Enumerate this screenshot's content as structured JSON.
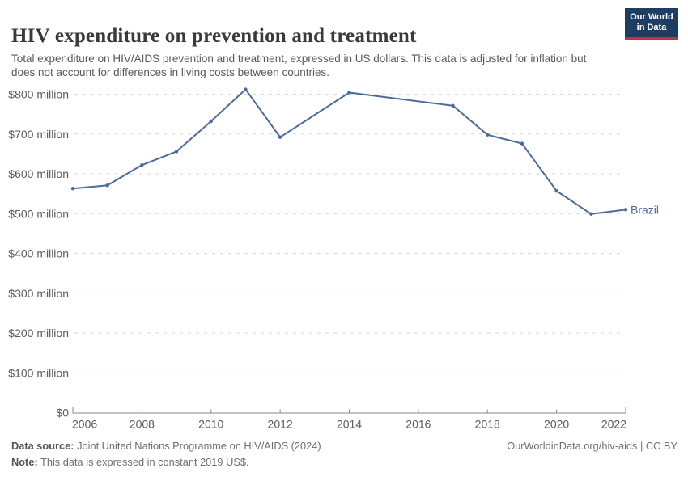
{
  "header": {
    "title": "HIV expenditure on prevention and treatment",
    "subtitle": "Total expenditure on HIV/AIDS prevention and treatment, expressed in US dollars. This data is adjusted for inflation but does not account for differences in living costs between countries.",
    "logo": {
      "line1": "Our World",
      "line2": "in Data"
    }
  },
  "chart_data": {
    "type": "line",
    "title": "HIV expenditure on prevention and treatment",
    "entity_label": "Brazil",
    "values_unit": "US$, millions (constant 2019 US$)",
    "series": [
      {
        "name": "Brazil",
        "points": [
          {
            "year": 2006,
            "value": 563
          },
          {
            "year": 2007,
            "value": 571
          },
          {
            "year": 2008,
            "value": 622
          },
          {
            "year": 2009,
            "value": 656
          },
          {
            "year": 2010,
            "value": 732
          },
          {
            "year": 2011,
            "value": 812
          },
          {
            "year": 2012,
            "value": 692
          },
          {
            "year": 2014,
            "value": 804
          },
          {
            "year": 2017,
            "value": 771
          },
          {
            "year": 2018,
            "value": 698
          },
          {
            "year": 2019,
            "value": 676
          },
          {
            "year": 2020,
            "value": 557
          },
          {
            "year": 2021,
            "value": 499
          },
          {
            "year": 2022,
            "value": 510
          }
        ]
      }
    ],
    "missing_years_interpolated": [
      2013,
      2015,
      2016
    ],
    "xlim": [
      2006,
      2022
    ],
    "ylim": [
      0,
      800
    ],
    "x_ticks": [
      2006,
      2008,
      2010,
      2012,
      2014,
      2016,
      2018,
      2020,
      2022
    ],
    "y_ticks": [
      {
        "value": 0,
        "label": "$0"
      },
      {
        "value": 100,
        "label": "$100 million"
      },
      {
        "value": 200,
        "label": "$200 million"
      },
      {
        "value": 300,
        "label": "$300 million"
      },
      {
        "value": 400,
        "label": "$400 million"
      },
      {
        "value": 500,
        "label": "$500 million"
      },
      {
        "value": 600,
        "label": "$600 million"
      },
      {
        "value": 700,
        "label": "$700 million"
      },
      {
        "value": 800,
        "label": "$800 million"
      }
    ],
    "grid": "horizontal dashed",
    "legend_position": "end-of-line label"
  },
  "footer": {
    "data_source_label": "Data source:",
    "data_source": "Joint United Nations Programme on HIV/AIDS (2024)",
    "note_label": "Note:",
    "note": "This data is expressed in constant 2019 US$.",
    "citation": "OurWorldinData.org/hiv-aids | CC BY"
  },
  "colors": {
    "line": "#4C6A9C",
    "entity_label": "#4C6A9C",
    "grid": "#d9d9d9",
    "axis": "#8a8a8a",
    "tick_text": "#5b5b5b",
    "logo_bg": "#1d3d63",
    "logo_stripe": "#d12b36"
  }
}
